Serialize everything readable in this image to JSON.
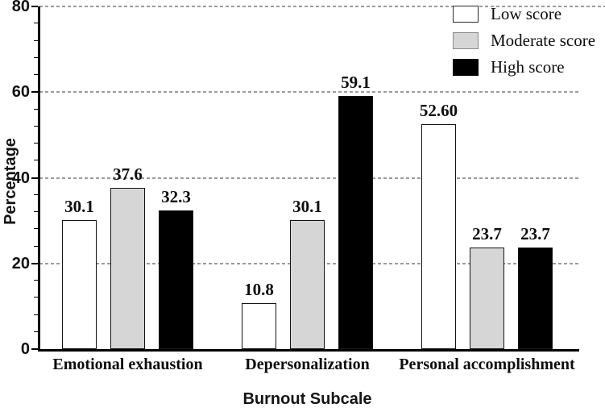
{
  "chart_data": {
    "type": "bar",
    "title": "",
    "xlabel": "Burnout Subcale",
    "ylabel": "Percentage",
    "ylim": [
      0,
      80
    ],
    "yticks": [
      0,
      20,
      40,
      60,
      80
    ],
    "minor_tick_step": 4,
    "grid": "horizontal-dashed",
    "legend_position": "top-right",
    "categories": [
      "Emotional exhaustion",
      "Depersonalization",
      "Personal accomplishment"
    ],
    "series": [
      {
        "name": "Low score",
        "color": "#ffffff",
        "values": [
          30.1,
          10.8,
          52.6
        ],
        "labels": [
          "30.1",
          "10.8",
          "52.60"
        ]
      },
      {
        "name": "Moderate score",
        "color": "#d6d6d6",
        "values": [
          37.6,
          30.1,
          23.7
        ],
        "labels": [
          "37.6",
          "30.1",
          "23.7"
        ]
      },
      {
        "name": "High score",
        "color": "#000000",
        "values": [
          32.3,
          59.1,
          23.7
        ],
        "labels": [
          "32.3",
          "59.1",
          "23.7"
        ]
      }
    ],
    "colors": {
      "axis": "#000000",
      "gridline": "#9b9b9b",
      "text": "#0d0d0d"
    }
  }
}
